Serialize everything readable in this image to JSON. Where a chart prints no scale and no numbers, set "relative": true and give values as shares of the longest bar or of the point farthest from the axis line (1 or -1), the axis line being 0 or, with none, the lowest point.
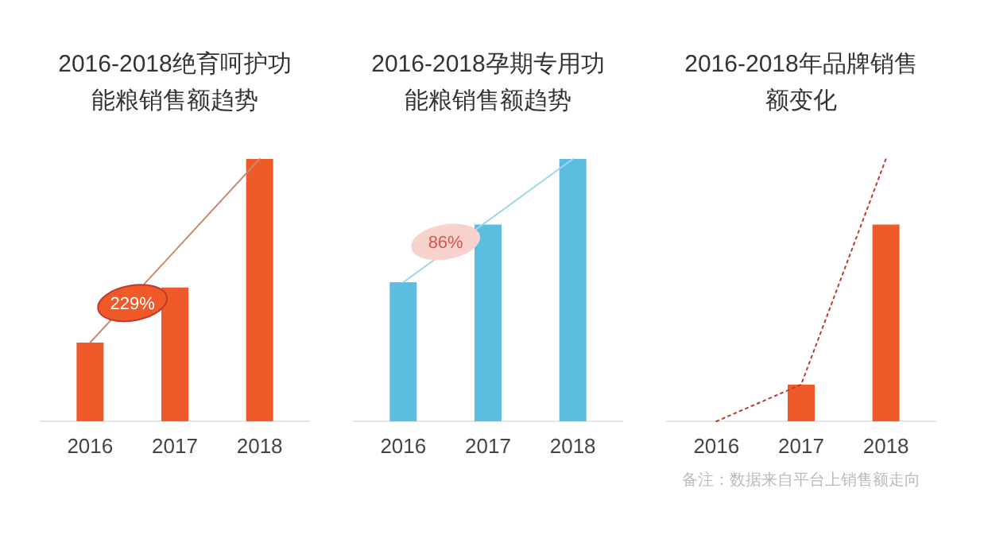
{
  "chart_data": [
    {
      "type": "bar",
      "title": "2016-2018绝育呵护功能粮销售额趋势",
      "categories": [
        "2016",
        "2017",
        "2018"
      ],
      "relative": true,
      "series": [
        {
          "color": "#f05a28",
          "values": [
            0.3,
            0.51,
            1
          ]
        },
        {
          "type": "line",
          "color": "#c98a70",
          "values": [
            0.3,
            0.65,
            1
          ]
        }
      ],
      "annotations": [
        "229%"
      ]
    },
    {
      "type": "bar",
      "title": "2016-2018孕期专用功能粮销售额趋势",
      "categories": [
        "2016",
        "2017",
        "2018"
      ],
      "relative": true,
      "series": [
        {
          "color": "#5bbde0",
          "values": [
            0.53,
            0.75,
            1
          ]
        },
        {
          "type": "line",
          "color": "#9fd6e8",
          "values": [
            0.53,
            0.765,
            1
          ]
        }
      ],
      "annotations": [
        "86%"
      ]
    },
    {
      "type": "bar",
      "title": "2016-2018年品牌销售额变化",
      "categories": [
        "2016",
        "2017",
        "2018"
      ],
      "relative": true,
      "series": [
        {
          "color": "#f05a28",
          "values": [
            0,
            0.14,
            0.75
          ]
        },
        {
          "type": "line",
          "color": "#c0392b",
          "line_style": "dotted",
          "values": [
            0,
            0.14,
            1
          ]
        }
      ],
      "annotations": [
        "备注：数据来自平台上销售额走向"
      ]
    }
  ]
}
